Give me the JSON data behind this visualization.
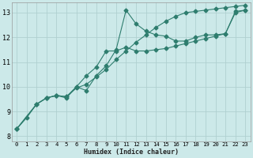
{
  "xlabel": "Humidex (Indice chaleur)",
  "ylabel": "",
  "bg_color": "#cce9e9",
  "grid_color": "#b0d0d0",
  "line_color": "#2e7d6e",
  "xlim": [
    -0.5,
    23.5
  ],
  "ylim": [
    7.8,
    13.4
  ],
  "xticks": [
    0,
    1,
    2,
    3,
    4,
    5,
    6,
    7,
    8,
    9,
    10,
    11,
    12,
    13,
    14,
    15,
    16,
    17,
    18,
    19,
    20,
    21,
    22,
    23
  ],
  "yticks": [
    8,
    9,
    10,
    11,
    12,
    13
  ],
  "line1_x": [
    0,
    1,
    2,
    3,
    4,
    5,
    6,
    7,
    8,
    9,
    10,
    11,
    12,
    13,
    14,
    15,
    16,
    17,
    18,
    19,
    20,
    21,
    22,
    23
  ],
  "line1_y": [
    8.3,
    8.75,
    9.3,
    9.55,
    9.65,
    9.6,
    9.95,
    10.1,
    10.4,
    10.7,
    11.1,
    11.45,
    11.8,
    12.1,
    12.4,
    12.65,
    12.85,
    13.0,
    13.05,
    13.1,
    13.15,
    13.2,
    13.25,
    13.3
  ],
  "line2_x": [
    0,
    2,
    3,
    4,
    5,
    6,
    7,
    8,
    9,
    10,
    11,
    12,
    13,
    14,
    15,
    16,
    17,
    18,
    19,
    20,
    21,
    22,
    23
  ],
  "line2_y": [
    8.3,
    9.3,
    9.55,
    9.65,
    9.55,
    10.0,
    9.85,
    10.45,
    10.85,
    11.5,
    13.1,
    12.55,
    12.25,
    12.1,
    12.05,
    11.85,
    11.85,
    12.0,
    12.1,
    12.1,
    12.15,
    13.0,
    13.1
  ],
  "line3_x": [
    0,
    2,
    3,
    4,
    5,
    6,
    7,
    8,
    9,
    10,
    11,
    12,
    13,
    14,
    15,
    16,
    17,
    18,
    19,
    20,
    21,
    22,
    23
  ],
  "line3_y": [
    8.3,
    9.3,
    9.55,
    9.65,
    9.6,
    10.0,
    10.45,
    10.8,
    11.45,
    11.45,
    11.6,
    11.45,
    11.45,
    11.5,
    11.55,
    11.65,
    11.75,
    11.85,
    11.95,
    12.05,
    12.15,
    13.05,
    13.1
  ]
}
